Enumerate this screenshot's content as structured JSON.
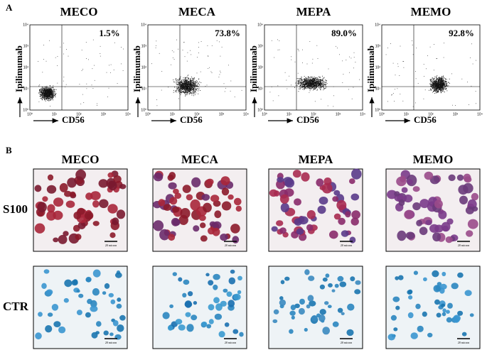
{
  "panel_a": {
    "label": "A",
    "y_label": "Ipilimumab",
    "x_label": "CD56",
    "ticks": [
      "10⁰",
      "10¹",
      "10²",
      "10³",
      "10⁴"
    ],
    "plots": [
      {
        "title": "MECO",
        "percent": "1.5%"
      },
      {
        "title": "MECA",
        "percent": "73.8%"
      },
      {
        "title": "MEPA",
        "percent": "89.0%"
      },
      {
        "title": "MEMO",
        "percent": "92.8%"
      }
    ]
  },
  "panel_b": {
    "label": "B",
    "columns": [
      "MECO",
      "MECA",
      "MEPA",
      "MEMO"
    ],
    "rows": [
      "S100",
      "CTR"
    ],
    "scale_bar": "20 micron"
  }
}
